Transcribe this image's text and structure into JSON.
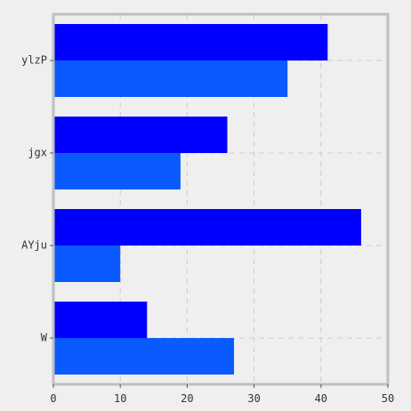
{
  "chart_data": {
    "type": "bar",
    "orientation": "horizontal",
    "categories": [
      "ylzP",
      "jgx",
      "AYju",
      "W"
    ],
    "series": [
      {
        "values": [
          41,
          26,
          46,
          14
        ],
        "color": "#0000ff"
      },
      {
        "values": [
          35,
          19,
          10,
          27
        ],
        "color": "#0a5aff"
      }
    ],
    "xlim": [
      0,
      50
    ],
    "xticks": [
      0,
      10,
      20,
      30,
      40,
      50
    ],
    "grid": true,
    "title": "",
    "xlabel": "",
    "ylabel": ""
  },
  "colors": {
    "background": "#efefef",
    "plot_border": "#bfbfbf",
    "grid": "#cccccc"
  }
}
